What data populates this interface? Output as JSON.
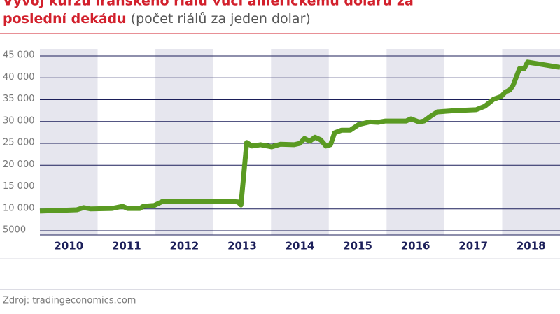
{
  "chart_data": {
    "type": "line",
    "title": [
      "Vývoj kurzu íránského riálu vůči americkému dolaru za",
      "poslední dekádu"
    ],
    "subtitle": "(počet riálů za jeden dolar)",
    "source": "Zdroj: tradingeconomics.com",
    "xlim": [
      2010,
      2019
    ],
    "xticks": [
      2010,
      2011,
      2012,
      2013,
      2014,
      2015,
      2016,
      2017,
      2018
    ],
    "ylim": [
      5000,
      45000
    ],
    "yticks": [
      {
        "value": 5000,
        "label": "5000"
      },
      {
        "value": 10000,
        "label": "10 000"
      },
      {
        "value": 15000,
        "label": "15 000"
      },
      {
        "value": 20000,
        "label": "20 000"
      },
      {
        "value": 25000,
        "label": "25 000"
      },
      {
        "value": 30000,
        "label": "30 000"
      },
      {
        "value": 35000,
        "label": "35 000"
      },
      {
        "value": 40000,
        "label": "40 000"
      },
      {
        "value": 45000,
        "label": "45 000"
      }
    ],
    "grid": true,
    "series": [
      {
        "color": "#5a9a22",
        "x": [
          2010.0,
          2010.64,
          2010.76,
          2010.88,
          2011.25,
          2011.43,
          2011.52,
          2011.73,
          2011.79,
          2011.98,
          2012.12,
          2013.31,
          2013.43,
          2013.48,
          2013.58,
          2013.67,
          2013.82,
          2014.01,
          2014.16,
          2014.4,
          2014.5,
          2014.58,
          2014.67,
          2014.76,
          2014.86,
          2014.95,
          2015.03,
          2015.1,
          2015.22,
          2015.37,
          2015.52,
          2015.71,
          2015.85,
          2015.98,
          2016.34,
          2016.42,
          2016.56,
          2016.65,
          2016.76,
          2016.88,
          2017.19,
          2017.55,
          2017.7,
          2017.85,
          2017.98,
          2018.06,
          2018.13,
          2018.19,
          2018.3,
          2018.38,
          2018.44,
          2019.0
        ],
        "values": [
          9500,
          9800,
          10300,
          10000,
          10100,
          10600,
          10100,
          10100,
          10600,
          10800,
          11700,
          11700,
          11600,
          10900,
          25200,
          24400,
          24700,
          24200,
          24800,
          24700,
          25000,
          26100,
          25500,
          26400,
          25800,
          24400,
          24700,
          27400,
          28000,
          28000,
          29300,
          29900,
          29800,
          30100,
          30100,
          30600,
          29900,
          30100,
          31200,
          32200,
          32500,
          32700,
          33500,
          35100,
          35700,
          36800,
          37200,
          38300,
          42100,
          42100,
          43600,
          42400
        ]
      }
    ]
  }
}
